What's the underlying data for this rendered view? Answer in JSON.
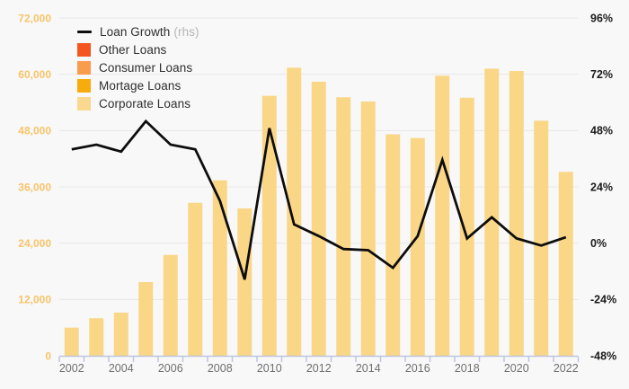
{
  "legend": {
    "items": [
      {
        "id": "loan-growth",
        "label": "Loan Growth",
        "suffix": "(rhs)",
        "swatch": "line",
        "color": "#0d0d0d"
      },
      {
        "id": "other-loans",
        "label": "Other Loans",
        "swatch": "square",
        "color": "#f3571f"
      },
      {
        "id": "consumer-loans",
        "label": "Consumer Loans",
        "swatch": "square",
        "color": "#f99c4e"
      },
      {
        "id": "mortage-loans",
        "label": "Mortage Loans",
        "swatch": "square",
        "color": "#f8ab0c"
      },
      {
        "id": "corporate-loans",
        "label": "Corporate Loans",
        "swatch": "square",
        "color": "#fad98f"
      }
    ]
  },
  "chart_data": {
    "type": "bar+line",
    "x": [
      2002,
      2003,
      2004,
      2005,
      2006,
      2007,
      2008,
      2009,
      2010,
      2011,
      2012,
      2013,
      2014,
      2015,
      2016,
      2017,
      2018,
      2019,
      2020,
      2021,
      2022
    ],
    "series": [
      {
        "name": "Corporate Loans",
        "type": "bar",
        "axis": "left",
        "color": "#fad687",
        "values": [
          6000,
          8000,
          9200,
          15700,
          21500,
          32600,
          37400,
          31400,
          55400,
          61400,
          58400,
          55100,
          54200,
          47200,
          46400,
          59700,
          55000,
          61200,
          60700,
          50100,
          39200
        ]
      },
      {
        "name": "Loan Growth",
        "type": "line",
        "axis": "right",
        "color": "#0d0d0d",
        "values": [
          40,
          42,
          39,
          52,
          42,
          40,
          18,
          -15.5,
          49,
          8,
          3,
          -2.5,
          -3,
          -10.5,
          3,
          35.5,
          2,
          11,
          2,
          -1,
          2.5
        ]
      }
    ],
    "left_axis": {
      "min": 0,
      "max": 72000,
      "tick_labels": [
        "72,000",
        "60,000",
        "48,000",
        "36,000",
        "24,000",
        "12,000",
        "0"
      ]
    },
    "right_axis": {
      "min": -48,
      "max": 96,
      "tick_labels": [
        "96%",
        "72%",
        "48%",
        "24%",
        "0%",
        "-24%",
        "-48%"
      ]
    },
    "x_tick_labels": [
      "2002",
      "2004",
      "2006",
      "2008",
      "2010",
      "2012",
      "2014",
      "2016",
      "2018",
      "2020",
      "2022"
    ],
    "grid": true,
    "legend_position": "top-left",
    "title": ""
  },
  "colors": {
    "background": "#f8f8f9",
    "gridline": "#e7e7e7",
    "axis_line": "#bdc6de",
    "left_tick_text": "#f7c468",
    "right_tick_text": "#1b1b1b",
    "x_tick_text": "#6f6f6f",
    "line_series": "#0d0d0d",
    "bar_series": "#fad687"
  }
}
